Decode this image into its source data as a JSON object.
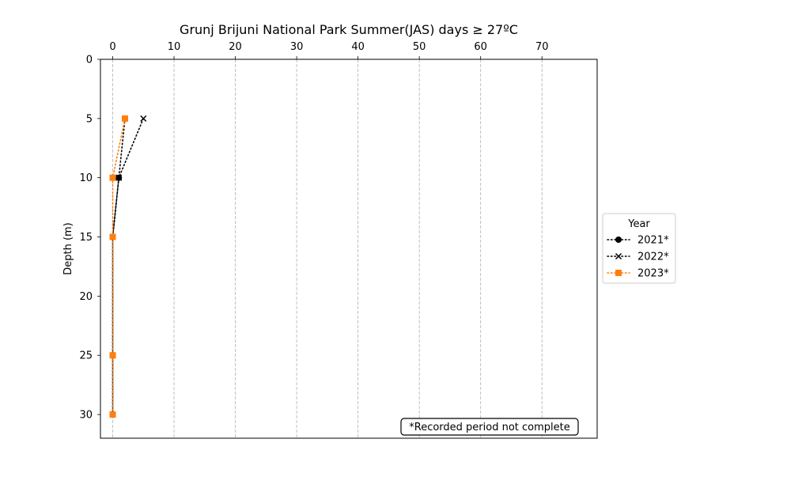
{
  "chart_data": {
    "type": "line",
    "title": "Grunj Brijuni National Park Summer(JAS) days ≥ 27ºC",
    "xlabel": "",
    "ylabel": "Depth (m)",
    "x_axis_position": "top",
    "y_inverted": true,
    "xlim": [
      -2,
      79
    ],
    "ylim": [
      0,
      32
    ],
    "x_ticks": [
      0,
      10,
      20,
      30,
      40,
      50,
      60,
      70
    ],
    "y_ticks": [
      0,
      5,
      10,
      15,
      20,
      25,
      30
    ],
    "grid": "x-dashed",
    "legend": {
      "title": "Year",
      "placement": "outside-right"
    },
    "annotation": "*Recorded period not complete",
    "series": [
      {
        "name": "2021*",
        "color": "#000000",
        "marker": "circle",
        "line": "dotted",
        "points": [
          {
            "x": 2,
            "y": 5
          },
          {
            "x": 1,
            "y": 10
          },
          {
            "x": 0,
            "y": 15
          },
          {
            "x": 0,
            "y": 25
          },
          {
            "x": 0,
            "y": 30
          }
        ]
      },
      {
        "name": "2022*",
        "color": "#000000",
        "marker": "x",
        "line": "dotted",
        "points": [
          {
            "x": 5,
            "y": 5
          },
          {
            "x": 1,
            "y": 10
          },
          {
            "x": 0,
            "y": 15
          },
          {
            "x": 0,
            "y": 25
          },
          {
            "x": 0,
            "y": 30
          }
        ]
      },
      {
        "name": "2023*",
        "color": "#ff7f0e",
        "marker": "square",
        "line": "dotted",
        "points": [
          {
            "x": 2,
            "y": 5
          },
          {
            "x": 0,
            "y": 10
          },
          {
            "x": 0,
            "y": 15
          },
          {
            "x": 0,
            "y": 25
          },
          {
            "x": 0,
            "y": 30
          }
        ]
      }
    ]
  }
}
